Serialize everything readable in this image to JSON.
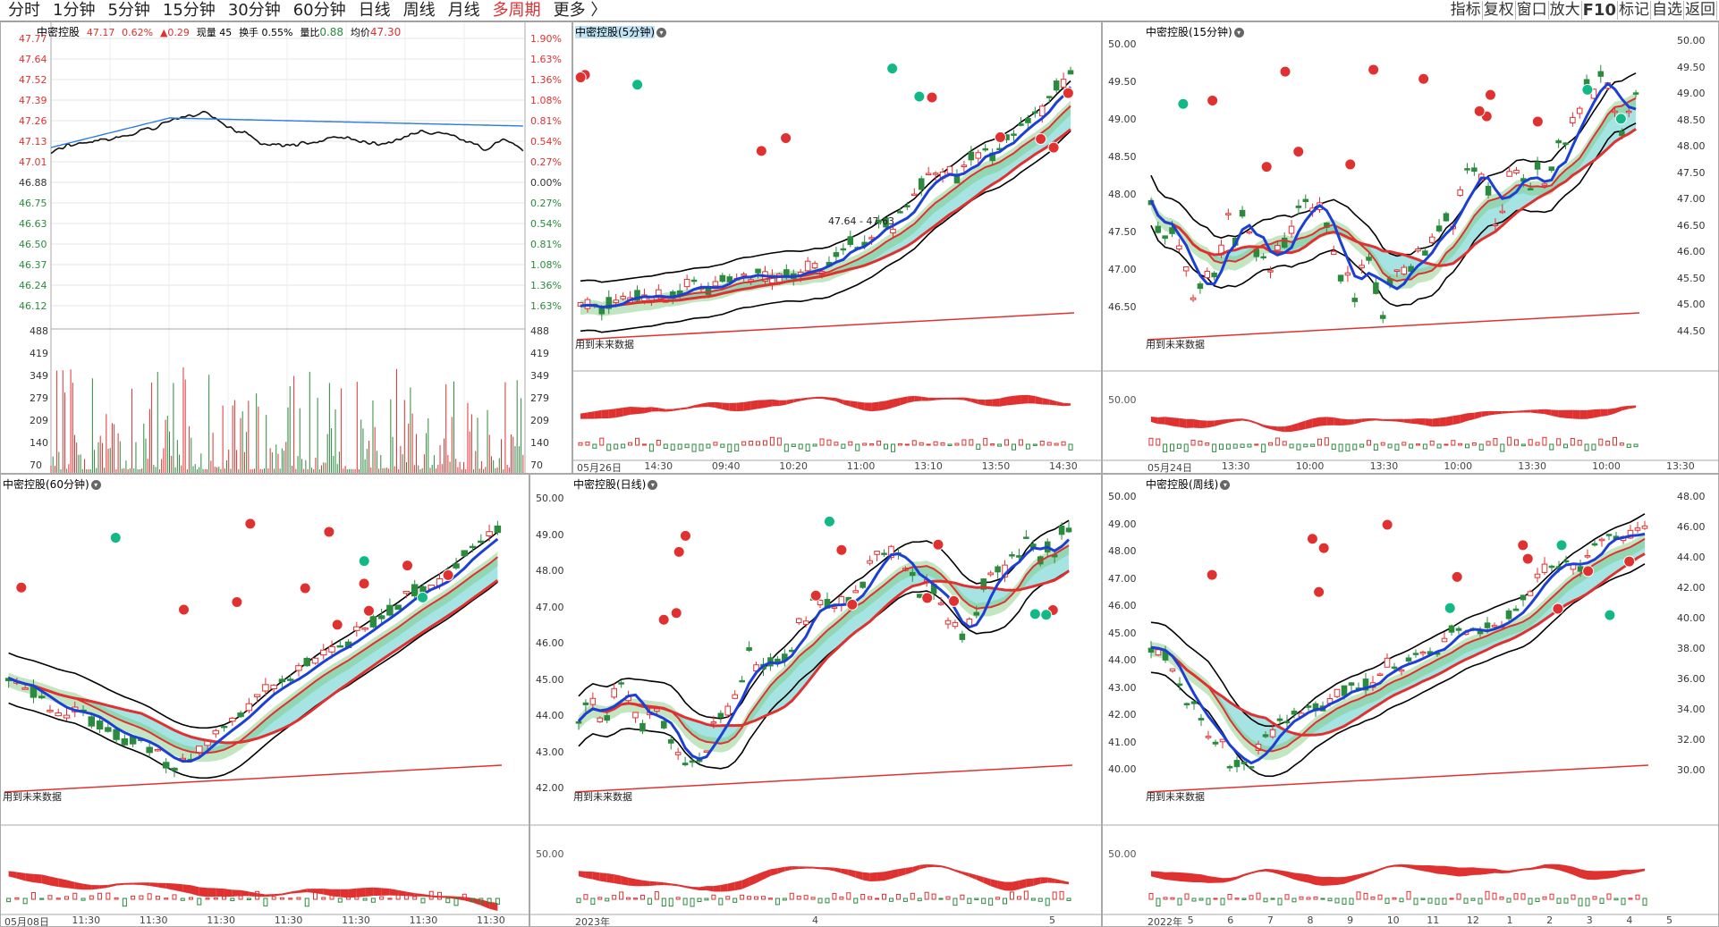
{
  "toolbar": {
    "tabs": [
      {
        "label": "分时"
      },
      {
        "label": "1分钟"
      },
      {
        "label": "5分钟"
      },
      {
        "label": "15分钟"
      },
      {
        "label": "30分钟"
      },
      {
        "label": "60分钟"
      },
      {
        "label": "日线"
      },
      {
        "label": "周线"
      },
      {
        "label": "月线"
      },
      {
        "label": "多周期"
      },
      {
        "label": "更多 〉"
      }
    ],
    "right": [
      "指标",
      "复权",
      "窗口",
      "放大",
      "F10",
      "标记",
      "自选",
      "返回"
    ]
  },
  "intraday": {
    "stock": "中密控股",
    "price": "47.17",
    "pct": "0.62%",
    "change": "▲0.29",
    "vol_label": "现量 45",
    "turnover": "换手 0.55%",
    "ratio_label": "量比",
    "ratio": "0.88",
    "avg_label": "均价",
    "avg": "47.30",
    "price_ticks": [
      "47.77",
      "47.64",
      "47.52",
      "47.39",
      "47.26",
      "47.13",
      "47.01",
      "46.88",
      "46.75",
      "46.63",
      "46.50",
      "46.37",
      "46.24",
      "46.12"
    ],
    "pct_ticks": [
      "1.90%",
      "1.63%",
      "1.36%",
      "1.08%",
      "0.81%",
      "0.54%",
      "0.27%",
      "0.00%",
      "0.27%",
      "0.54%",
      "0.81%",
      "1.08%",
      "1.36%",
      "1.63%"
    ],
    "vol_ticks": [
      "488",
      "419",
      "349",
      "279",
      "209",
      "140",
      "70"
    ]
  },
  "p5": {
    "title": "中密控股(5分钟)",
    "range": "47.64 - 47.63",
    "note": "用到未来数据",
    "xaxis": [
      "05月26日",
      "14:30",
      "09:40",
      "10:20",
      "11:00",
      "13:10",
      "13:50",
      "14:30"
    ]
  },
  "p15": {
    "title": "中密控股(15分钟)",
    "left_ticks": [
      "50.00",
      "49.50",
      "49.00",
      "48.50",
      "48.00",
      "47.50",
      "47.00",
      "46.50"
    ],
    "right_ticks": [
      "50.00",
      "49.50",
      "49.00",
      "48.50",
      "48.00",
      "47.50",
      "47.00",
      "46.50",
      "46.00",
      "45.50",
      "45.00",
      "44.50"
    ],
    "note": "用到未来数据",
    "osc_tick": "50.00",
    "xaxis": [
      "05月24日",
      "13:30",
      "10:00",
      "13:30",
      "10:00",
      "13:30",
      "10:00",
      "13:30"
    ]
  },
  "p60": {
    "title": "中密控股(60分钟)",
    "note": "用到未来数据",
    "xaxis": [
      "05月08日",
      "11:30",
      "11:30",
      "11:30",
      "11:30",
      "11:30",
      "11:30",
      "11:30"
    ]
  },
  "pday": {
    "title": "中密控股(日线)",
    "left_ticks": [
      "50.00",
      "49.00",
      "48.00",
      "47.00",
      "46.00",
      "45.00",
      "44.00",
      "43.00",
      "42.00"
    ],
    "note": "用到未来数据",
    "osc_tick": "50.00",
    "xaxis": [
      "2023年",
      "4",
      "5"
    ]
  },
  "pweek": {
    "title": "中密控股(周线)",
    "left_ticks": [
      "50.00",
      "49.00",
      "48.00",
      "47.00",
      "46.00",
      "45.00",
      "44.00",
      "43.00",
      "42.00",
      "41.00",
      "40.00"
    ],
    "right_ticks": [
      "48.00",
      "46.00",
      "44.00",
      "42.00",
      "40.00",
      "38.00",
      "36.00",
      "34.00",
      "32.00",
      "30.00"
    ],
    "note": "用到未来数据",
    "osc_tick": "50.00",
    "xaxis": [
      "2022年",
      "5",
      "6",
      "7",
      "8",
      "9",
      "10",
      "11",
      "12",
      "1",
      "2",
      "3",
      "4",
      "5"
    ]
  }
}
